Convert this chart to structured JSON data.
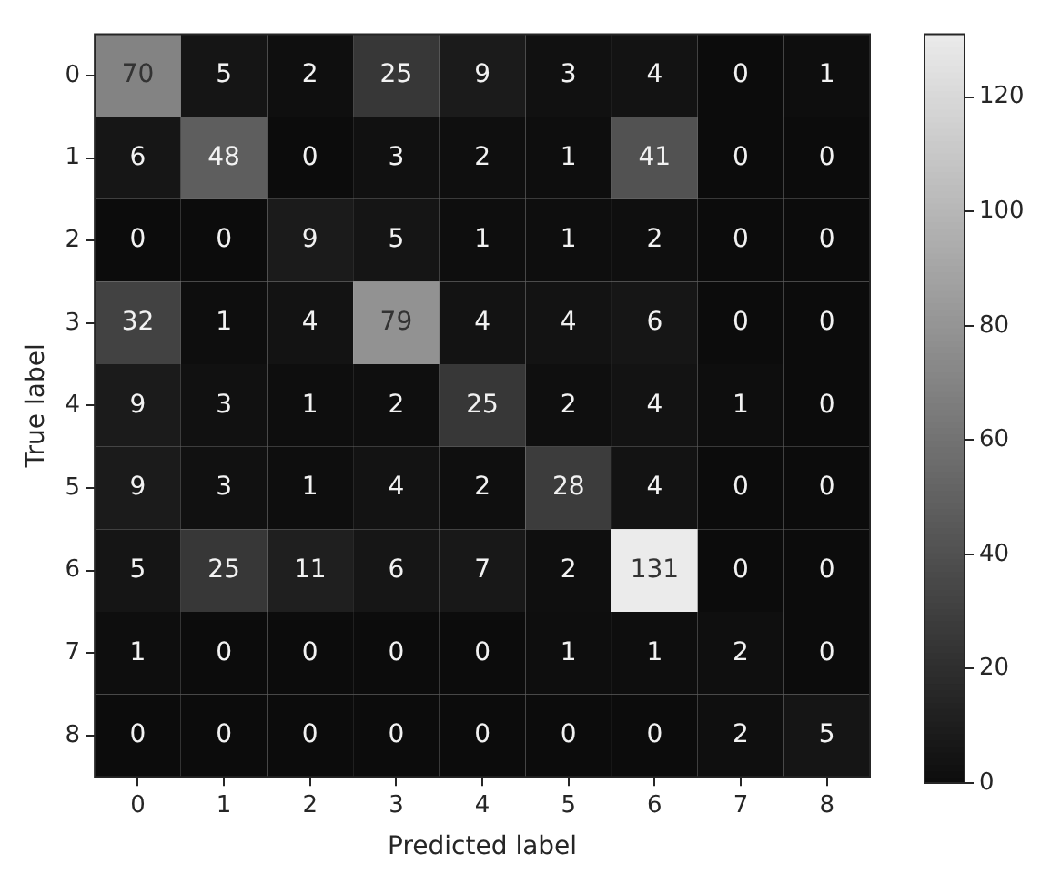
{
  "chart_data": {
    "type": "heatmap",
    "xlabel": "Predicted label",
    "ylabel": "True label",
    "categories": [
      "0",
      "1",
      "2",
      "3",
      "4",
      "5",
      "6",
      "7",
      "8"
    ],
    "y_categories": [
      "0",
      "1",
      "2",
      "3",
      "4",
      "5",
      "6",
      "7",
      "8"
    ],
    "cells": [
      [
        70,
        5,
        2,
        25,
        9,
        3,
        4,
        0,
        1
      ],
      [
        6,
        48,
        0,
        3,
        2,
        1,
        41,
        0,
        0
      ],
      [
        0,
        0,
        9,
        5,
        1,
        1,
        2,
        0,
        0
      ],
      [
        32,
        1,
        4,
        79,
        4,
        4,
        6,
        0,
        0
      ],
      [
        9,
        3,
        1,
        2,
        25,
        2,
        4,
        1,
        0
      ],
      [
        9,
        3,
        1,
        4,
        2,
        28,
        4,
        0,
        0
      ],
      [
        5,
        25,
        11,
        6,
        7,
        2,
        131,
        0,
        0
      ],
      [
        1,
        0,
        0,
        0,
        0,
        1,
        1,
        2,
        0
      ],
      [
        0,
        0,
        0,
        0,
        0,
        0,
        0,
        2,
        5
      ]
    ],
    "clim": [
      0,
      131
    ],
    "cticks": [
      0,
      20,
      40,
      60,
      80,
      100,
      120
    ],
    "data_labels": true
  }
}
